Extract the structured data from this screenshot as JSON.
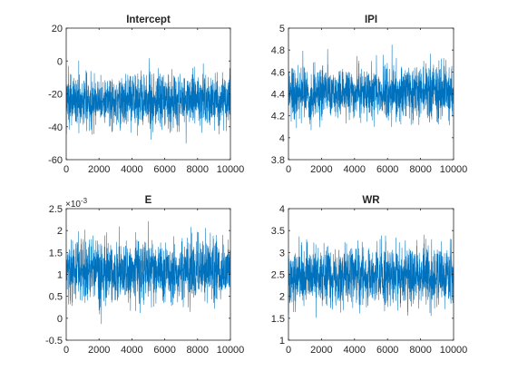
{
  "chart_data": [
    {
      "type": "line",
      "title": "Intercept",
      "xlim": [
        0,
        10000
      ],
      "ylim": [
        -60,
        20
      ],
      "xticks": [
        0,
        2000,
        4000,
        6000,
        8000,
        10000
      ],
      "yticks": [
        -60,
        -40,
        -20,
        0,
        20
      ],
      "xtick_labels": [
        "0",
        "2000",
        "4000",
        "6000",
        "8000",
        "10000"
      ],
      "ytick_labels": [
        "-60",
        "-40",
        "-20",
        "0",
        "20"
      ],
      "exponent_label": "",
      "series": [
        {
          "mean": -24,
          "sd": 8,
          "min": -57,
          "max": 11,
          "n": 10000
        }
      ],
      "color": "#0072BD",
      "grid": false
    },
    {
      "type": "line",
      "title": "IPI",
      "xlim": [
        0,
        10000
      ],
      "ylim": [
        3.8,
        5
      ],
      "xticks": [
        0,
        2000,
        4000,
        6000,
        8000,
        10000
      ],
      "yticks": [
        3.8,
        4,
        4.2,
        4.4,
        4.6,
        4.8,
        5
      ],
      "xtick_labels": [
        "0",
        "2000",
        "4000",
        "6000",
        "8000",
        "10000"
      ],
      "ytick_labels": [
        "3.8",
        "4",
        "4.2",
        "4.4",
        "4.6",
        "4.8",
        "5"
      ],
      "exponent_label": "",
      "series": [
        {
          "mean": 4.41,
          "sd": 0.12,
          "min": 3.9,
          "max": 4.92,
          "n": 10000
        }
      ],
      "color": "#0072BD",
      "grid": false
    },
    {
      "type": "line",
      "title": "E",
      "xlim": [
        0,
        10000
      ],
      "ylim": [
        -0.0005,
        0.0025
      ],
      "xticks": [
        0,
        2000,
        4000,
        6000,
        8000,
        10000
      ],
      "yticks": [
        -0.0005,
        0,
        0.0005,
        0.001,
        0.0015,
        0.002,
        0.0025
      ],
      "xtick_labels": [
        "0",
        "2000",
        "4000",
        "6000",
        "8000",
        "10000"
      ],
      "ytick_labels": [
        "-0.5",
        "0",
        "0.5",
        "1",
        "1.5",
        "2",
        "2.5"
      ],
      "exponent_label": "×10",
      "exponent_power": "-3",
      "series": [
        {
          "mean": 0.00107,
          "sd": 0.00035,
          "min": -0.0004,
          "max": 0.0023,
          "n": 10000
        }
      ],
      "color": "#0072BD",
      "grid": false
    },
    {
      "type": "line",
      "title": "WR",
      "xlim": [
        0,
        10000
      ],
      "ylim": [
        1,
        4
      ],
      "xticks": [
        0,
        2000,
        4000,
        6000,
        8000,
        10000
      ],
      "yticks": [
        1,
        1.5,
        2,
        2.5,
        3,
        3.5,
        4
      ],
      "xtick_labels": [
        "0",
        "2000",
        "4000",
        "6000",
        "8000",
        "10000"
      ],
      "ytick_labels": [
        "1",
        "1.5",
        "2",
        "2.5",
        "3",
        "3.5",
        "4"
      ],
      "exponent_label": "",
      "series": [
        {
          "mean": 2.48,
          "sd": 0.33,
          "min": 1.25,
          "max": 3.88,
          "n": 10000
        }
      ],
      "color": "#0072BD",
      "grid": false
    }
  ]
}
